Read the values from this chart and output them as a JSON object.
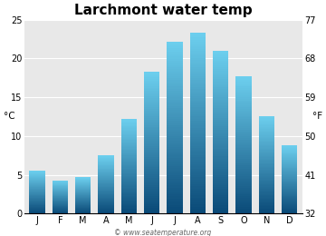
{
  "title": "Larchmont water temp",
  "months": [
    "J",
    "F",
    "M",
    "A",
    "M",
    "J",
    "J",
    "A",
    "S",
    "O",
    "N",
    "D"
  ],
  "values_c": [
    5.5,
    4.3,
    4.7,
    7.5,
    12.2,
    18.3,
    22.2,
    23.3,
    21.0,
    17.7,
    12.6,
    8.8
  ],
  "ylabel_left": "°C",
  "ylabel_right": "°F",
  "ylim_c": [
    0,
    25
  ],
  "yticks_c": [
    0,
    5,
    10,
    15,
    20,
    25
  ],
  "yticks_f": [
    32,
    41,
    50,
    59,
    68,
    77
  ],
  "bar_color_top": "#6dd0ef",
  "bar_color_bottom": "#0a4a78",
  "background_color": "#ffffff",
  "plot_bg_color": "#e8e8e8",
  "title_fontsize": 11,
  "axis_fontsize": 7.5,
  "tick_fontsize": 7,
  "watermark": "© www.seatemperature.org"
}
